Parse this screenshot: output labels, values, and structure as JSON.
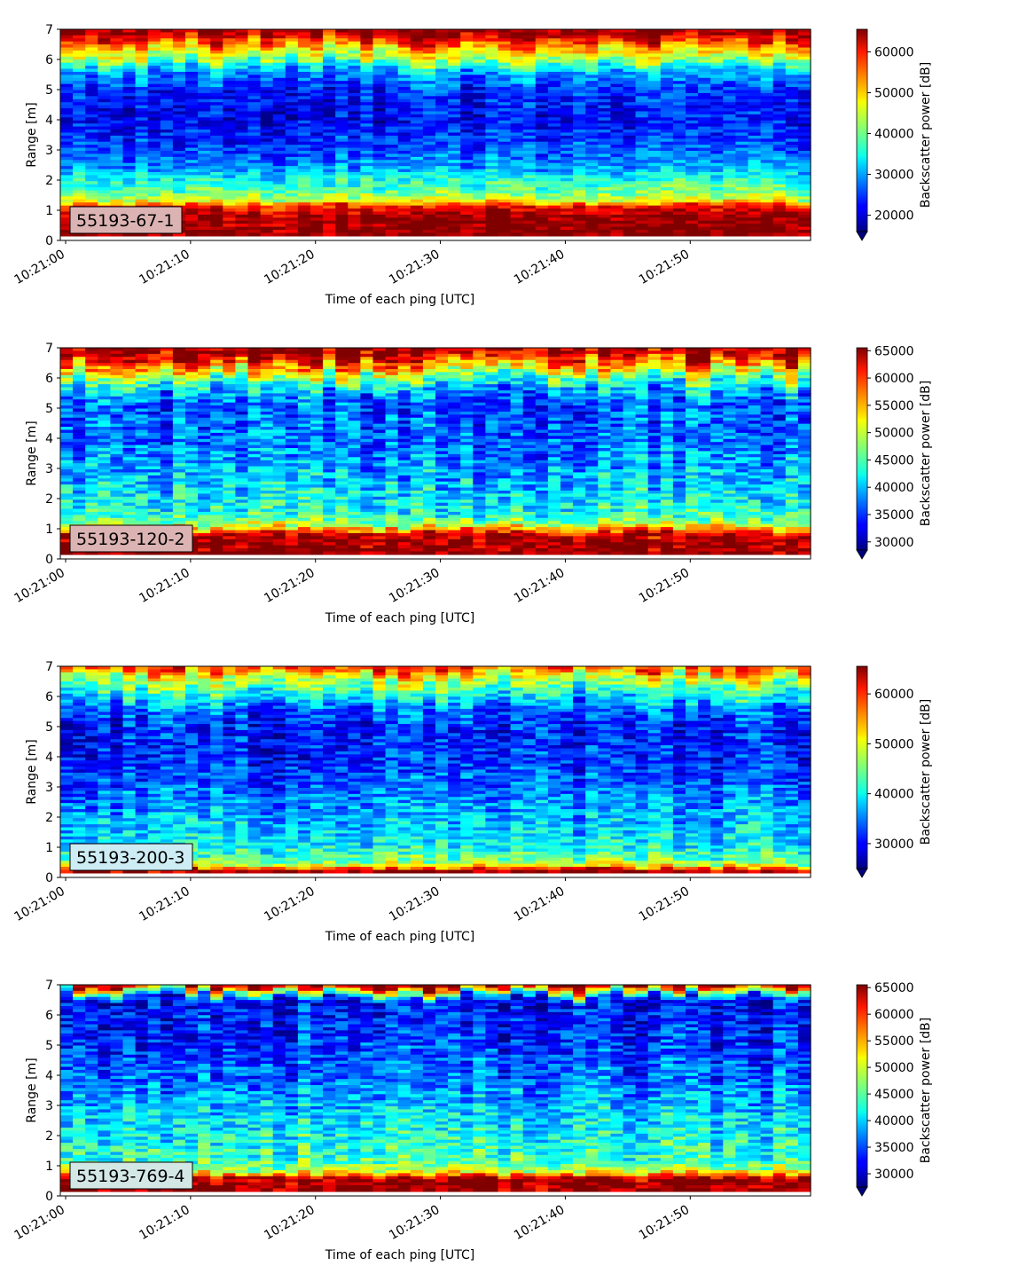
{
  "chart_data": [
    {
      "type": "heatmap",
      "site_label": "55193-67-1",
      "xlabel": "Time of each ping [UTC]",
      "ylabel": "Range [m]",
      "x_ticks": [
        "10:21:00",
        "10:21:10",
        "10:21:20",
        "10:21:30",
        "10:21:40",
        "10:21:50"
      ],
      "x_range": [
        "10:21:00",
        "10:21:59"
      ],
      "y_ticks": [
        0,
        1,
        2,
        3,
        4,
        5,
        6,
        7
      ],
      "ylim": [
        0,
        7
      ],
      "colorbar": {
        "label": "Backscatter power [dB]",
        "range": [
          16000,
          65535
        ],
        "ticks": [
          20000,
          30000,
          40000,
          50000,
          60000
        ],
        "colormap": "jet",
        "extend": "min"
      },
      "profile": {
        "range_m": [
          0.15,
          0.4,
          0.8,
          1.15,
          1.3,
          1.6,
          2.0,
          2.4,
          3.0,
          4.0,
          5.0,
          5.6,
          6.0,
          6.4,
          6.7,
          7.0
        ],
        "backscatter": [
          65535,
          65000,
          64000,
          58000,
          46000,
          40000,
          36000,
          30000,
          26000,
          22000,
          24000,
          30000,
          42000,
          50000,
          60000,
          65535
        ]
      },
      "label_color": "#dcb3b3"
    },
    {
      "type": "heatmap",
      "site_label": "55193-120-2",
      "xlabel": "Time of each ping [UTC]",
      "ylabel": "Range [m]",
      "x_ticks": [
        "10:21:00",
        "10:21:10",
        "10:21:20",
        "10:21:30",
        "10:21:40",
        "10:21:50"
      ],
      "x_range": [
        "10:21:00",
        "10:21:59"
      ],
      "y_ticks": [
        0,
        1,
        2,
        3,
        4,
        5,
        6,
        7
      ],
      "ylim": [
        0,
        7
      ],
      "colorbar": {
        "label": "Backscatter power [dB]",
        "range": [
          28500,
          65535
        ],
        "ticks": [
          30000,
          35000,
          40000,
          45000,
          50000,
          55000,
          60000,
          65000
        ],
        "colormap": "jet",
        "extend": "min"
      },
      "profile": {
        "range_m": [
          0.15,
          0.4,
          0.8,
          0.95,
          1.1,
          1.4,
          2.0,
          3.0,
          4.0,
          5.0,
          5.5,
          6.0,
          6.4,
          6.7,
          7.0
        ],
        "backscatter": [
          65535,
          65000,
          63000,
          56000,
          50000,
          44000,
          42000,
          39000,
          37000,
          36000,
          38000,
          46000,
          55000,
          62000,
          65535
        ]
      },
      "label_color": "#dcb3b3"
    },
    {
      "type": "heatmap",
      "site_label": "55193-200-3",
      "xlabel": "Time of each ping [UTC]",
      "ylabel": "Range [m]",
      "x_ticks": [
        "10:21:00",
        "10:21:10",
        "10:21:20",
        "10:21:30",
        "10:21:40",
        "10:21:50"
      ],
      "x_range": [
        "10:21:00",
        "10:21:59"
      ],
      "y_ticks": [
        0,
        1,
        2,
        3,
        4,
        5,
        6,
        7
      ],
      "ylim": [
        0,
        7
      ],
      "colorbar": {
        "label": "Backscatter power [dB]",
        "range": [
          25000,
          65535
        ],
        "ticks": [
          30000,
          40000,
          50000,
          60000
        ],
        "colormap": "jet",
        "extend": "min"
      },
      "profile": {
        "range_m": [
          0.15,
          0.25,
          0.35,
          0.5,
          1.0,
          2.0,
          3.0,
          4.0,
          5.0,
          5.6,
          6.0,
          6.4,
          6.7,
          7.0
        ],
        "backscatter": [
          65535,
          62000,
          52000,
          45000,
          40000,
          37000,
          34000,
          31000,
          31000,
          34000,
          40000,
          45000,
          50000,
          60000
        ]
      },
      "label_color": "#cdecf4"
    },
    {
      "type": "heatmap",
      "site_label": "55193-769-4",
      "xlabel": "Time of each ping [UTC]",
      "ylabel": "Range [m]",
      "x_ticks": [
        "10:21:00",
        "10:21:10",
        "10:21:20",
        "10:21:30",
        "10:21:40",
        "10:21:50"
      ],
      "x_range": [
        "10:21:00",
        "10:21:59"
      ],
      "y_ticks": [
        0,
        1,
        2,
        3,
        4,
        5,
        6,
        7
      ],
      "ylim": [
        0,
        7
      ],
      "colorbar": {
        "label": "Backscatter power [dB]",
        "range": [
          27500,
          65535
        ],
        "ticks": [
          30000,
          35000,
          40000,
          45000,
          50000,
          55000,
          60000,
          65000
        ],
        "colormap": "jet",
        "extend": "min"
      },
      "profile": {
        "range_m": [
          0.15,
          0.4,
          0.6,
          0.75,
          0.9,
          1.2,
          2.0,
          3.0,
          4.0,
          5.0,
          6.0,
          6.5,
          6.75,
          7.0
        ],
        "backscatter": [
          65535,
          65000,
          63000,
          52000,
          47000,
          44000,
          42000,
          39000,
          36000,
          34000,
          33000,
          32000,
          48000,
          65535
        ]
      },
      "label_color": "#d3e8e4"
    }
  ]
}
